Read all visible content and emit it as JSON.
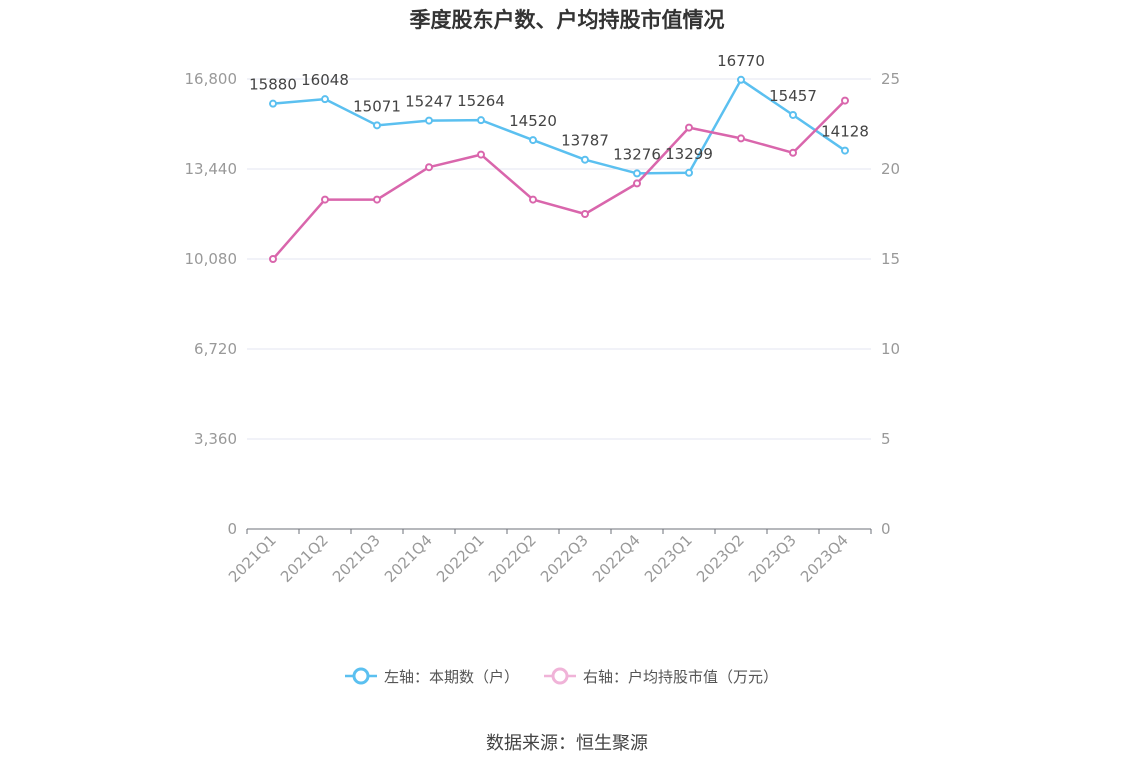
{
  "chart_data": {
    "type": "line",
    "title": "季度股东户数、户均持股市值情况",
    "categories": [
      "2021Q1",
      "2021Q2",
      "2021Q3",
      "2021Q4",
      "2022Q1",
      "2022Q2",
      "2022Q3",
      "2022Q4",
      "2023Q1",
      "2023Q2",
      "2023Q3",
      "2023Q4"
    ],
    "y_left": {
      "ticks": [
        "0",
        "3,360",
        "6,720",
        "10,080",
        "13,440",
        "16,800"
      ],
      "ylim": [
        0,
        16800
      ]
    },
    "y_right": {
      "ticks": [
        "0",
        "5",
        "10",
        "15",
        "20",
        "25"
      ],
      "ylim": [
        0,
        25
      ]
    },
    "series": [
      {
        "name": "左轴：本期数（户）",
        "axis": "left",
        "color": "#5bc0f0",
        "values": [
          15880,
          16048,
          15071,
          15247,
          15264,
          14520,
          13787,
          13276,
          13299,
          16770,
          15457,
          14128
        ],
        "labels": [
          "15880",
          "16048",
          "15071",
          "15247",
          "15264",
          "14520",
          "13787",
          "13276",
          "13299",
          "16770",
          "15457",
          "14128"
        ]
      },
      {
        "name": "右轴：户均持股市值（万元）",
        "axis": "right",
        "color": "#d966ac",
        "values": [
          15.0,
          18.3,
          18.3,
          20.1,
          20.8,
          18.3,
          17.5,
          19.2,
          22.3,
          21.7,
          20.9,
          23.8
        ]
      }
    ],
    "grid": true,
    "legend_position": "bottom"
  },
  "source_text": "数据来源：恒生聚源"
}
